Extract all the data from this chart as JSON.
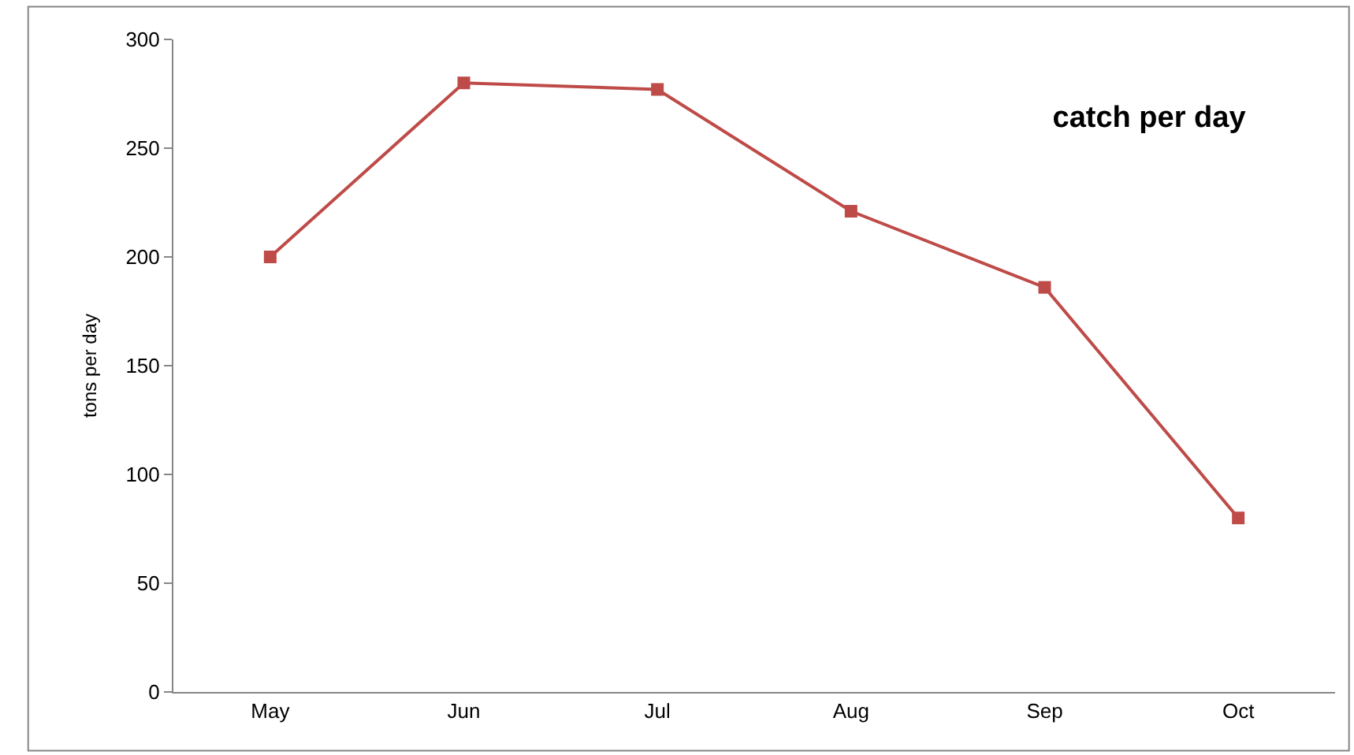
{
  "chart_data": {
    "type": "line",
    "title": "catch per day",
    "ylabel": "tons per day",
    "categories": [
      "May",
      "Jun",
      "Jul",
      "Aug",
      "Sep",
      "Oct"
    ],
    "series": [
      {
        "color": "#be4b48",
        "values": [
          200,
          280,
          277,
          221,
          186,
          80
        ]
      }
    ],
    "ylim": [
      0,
      300
    ],
    "yticks": [
      0,
      50,
      100,
      150,
      200,
      250,
      300
    ],
    "marker": "square",
    "line_style": "solid",
    "grid": false,
    "legend": false
  }
}
